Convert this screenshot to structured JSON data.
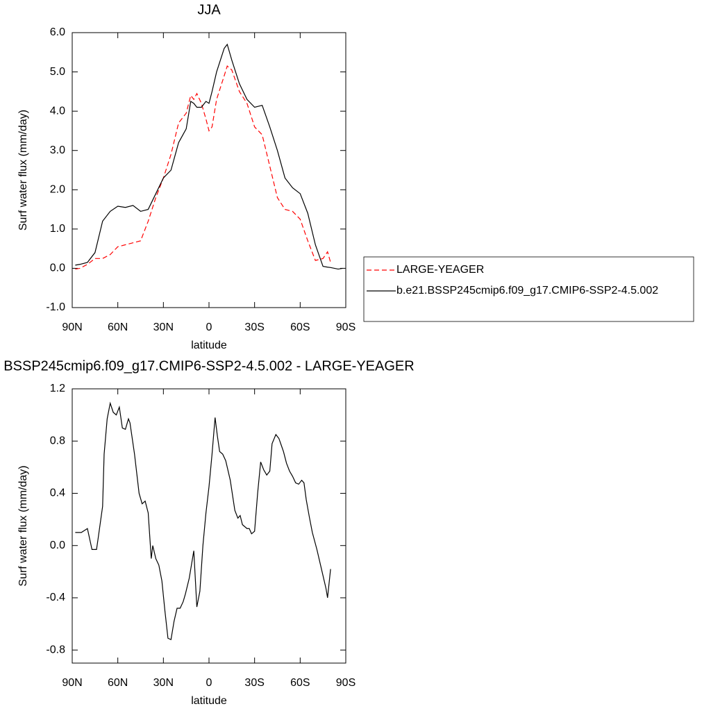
{
  "chart_data": [
    {
      "type": "line",
      "title": "JJA",
      "xlabel": "latitude",
      "ylabel": "Surf water flux (mm/day)",
      "x": [
        88,
        85,
        80,
        75,
        70,
        65,
        60,
        55,
        50,
        45,
        40,
        35,
        30,
        25,
        20,
        15,
        12,
        10,
        8,
        5,
        2,
        0,
        -2,
        -5,
        -10,
        -12,
        -15,
        -20,
        -25,
        -30,
        -35,
        -40,
        -45,
        -50,
        -55,
        -60,
        -65,
        -70,
        -75,
        -78,
        -80,
        -85,
        -88
      ],
      "xlim": [
        90,
        -90
      ],
      "xticks": [
        {
          "value": 90,
          "label": "90N"
        },
        {
          "value": 60,
          "label": "60N"
        },
        {
          "value": 30,
          "label": "30N"
        },
        0,
        {
          "value": -30,
          "label": "30S"
        },
        {
          "value": -60,
          "label": "60S"
        },
        {
          "value": -90,
          "label": "90S"
        }
      ],
      "ylim": [
        -1,
        6
      ],
      "yticks": [
        {
          "value": -1,
          "label": "-1.0"
        },
        {
          "value": 0,
          "label": "0.0"
        },
        {
          "value": 1,
          "label": "1.0"
        },
        {
          "value": 2,
          "label": "2.0"
        },
        {
          "value": 3,
          "label": "3.0"
        },
        {
          "value": 4,
          "label": "4.0"
        },
        {
          "value": 5,
          "label": "5.0"
        },
        {
          "value": 6,
          "label": "6.0"
        }
      ],
      "legend": "right",
      "series": [
        {
          "name": "LARGE-YEAGER",
          "color": "#ff0000",
          "line_style": "dashed",
          "values": [
            -0.02,
            0.0,
            0.1,
            0.25,
            0.25,
            0.35,
            0.55,
            0.6,
            0.65,
            0.7,
            1.2,
            1.8,
            2.3,
            2.9,
            3.7,
            3.95,
            4.4,
            4.3,
            4.45,
            4.2,
            3.8,
            3.5,
            3.6,
            4.3,
            4.9,
            5.15,
            5.05,
            4.5,
            4.2,
            3.6,
            3.4,
            2.6,
            1.8,
            1.5,
            1.45,
            1.25,
            0.7,
            0.2,
            0.25,
            0.42,
            0.15,
            null,
            null
          ]
        },
        {
          "name": "b.e21.BSSP245cmip6.f09_g17.CMIP6-SSP2-4.5.002",
          "color": "#000000",
          "line_style": "solid",
          "values": [
            0.08,
            0.1,
            0.15,
            0.4,
            1.2,
            1.45,
            1.58,
            1.55,
            1.6,
            1.45,
            1.5,
            1.9,
            2.3,
            2.5,
            3.2,
            3.55,
            4.25,
            4.2,
            4.1,
            4.1,
            4.25,
            4.2,
            4.5,
            5.0,
            5.6,
            5.7,
            5.3,
            4.7,
            4.3,
            4.1,
            4.15,
            3.6,
            3.0,
            2.3,
            2.05,
            1.9,
            1.4,
            0.6,
            0.05,
            0.03,
            0.02,
            -0.02,
            0.0
          ]
        }
      ]
    },
    {
      "type": "line",
      "title": "BSSP245cmip6.f09_g17.CMIP6-SSP2-4.5.002 - LARGE-YEAGER",
      "xlabel": "latitude",
      "ylabel": "Surf water flux (mm/day)",
      "x": [
        88,
        84,
        80,
        77,
        74,
        73,
        70,
        69,
        67,
        65,
        63,
        61,
        59,
        57,
        55,
        53,
        52,
        49,
        46,
        44,
        42,
        40,
        38,
        37,
        35,
        33,
        31,
        29,
        27,
        25,
        23,
        21,
        19,
        17,
        15.5,
        13,
        10,
        8,
        6,
        4,
        2,
        0,
        -2,
        -4,
        -5.5,
        -7,
        -9,
        -11,
        -14,
        -17,
        -19,
        -20.5,
        -22,
        -25,
        -26.5,
        -28,
        -30,
        -32,
        -34,
        -36,
        -38,
        -40,
        -41.5,
        -44,
        -46,
        -47.5,
        -49,
        -51,
        -53,
        -55,
        -57,
        -59,
        -61,
        -62.5,
        -64,
        -66,
        -68,
        -71,
        -74,
        -77,
        -78,
        -80
      ],
      "xlim": [
        90,
        -90
      ],
      "xticks": [
        {
          "value": 90,
          "label": "90N"
        },
        {
          "value": 60,
          "label": "60N"
        },
        {
          "value": 30,
          "label": "30N"
        },
        0,
        {
          "value": -30,
          "label": "30S"
        },
        {
          "value": -60,
          "label": "60S"
        },
        {
          "value": -90,
          "label": "90S"
        }
      ],
      "ylim": [
        -0.9,
        1.2
      ],
      "yticks": [
        -0.8,
        -0.4,
        {
          "value": 0,
          "label": "0.0"
        },
        0.4,
        0.8,
        1.2
      ],
      "series": [
        {
          "color": "#000000",
          "line_style": "solid",
          "values": [
            0.1,
            0.1,
            0.13,
            -0.03,
            -0.03,
            0.05,
            0.3,
            0.7,
            0.97,
            1.09,
            1.02,
            1.0,
            1.06,
            0.9,
            0.89,
            0.97,
            0.94,
            0.7,
            0.4,
            0.32,
            0.34,
            0.25,
            -0.1,
            0.0,
            -0.1,
            -0.15,
            -0.27,
            -0.5,
            -0.71,
            -0.72,
            -0.58,
            -0.48,
            -0.48,
            -0.43,
            -0.37,
            -0.25,
            -0.04,
            -0.47,
            -0.35,
            0.0,
            0.25,
            0.45,
            0.7,
            0.98,
            0.84,
            0.72,
            0.7,
            0.65,
            0.5,
            0.27,
            0.21,
            0.23,
            0.16,
            0.13,
            0.13,
            0.09,
            0.11,
            0.4,
            0.64,
            0.58,
            0.54,
            0.57,
            0.78,
            0.85,
            0.82,
            0.77,
            0.72,
            0.63,
            0.57,
            0.53,
            0.48,
            0.47,
            0.5,
            0.48,
            0.35,
            0.22,
            0.1,
            -0.03,
            -0.18,
            -0.33,
            -0.4,
            -0.18
          ]
        }
      ]
    }
  ]
}
